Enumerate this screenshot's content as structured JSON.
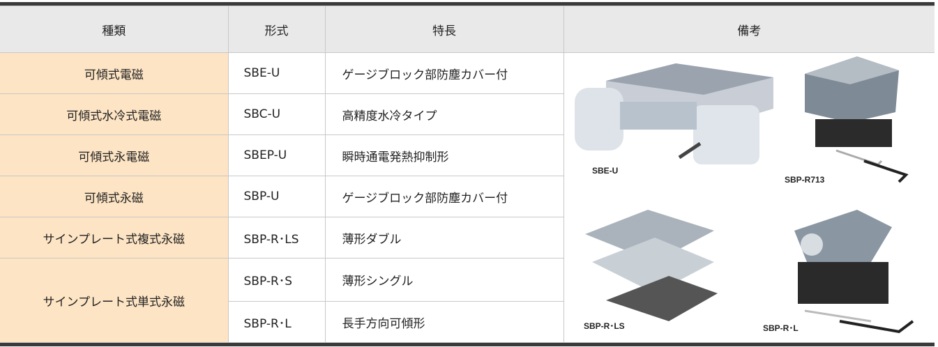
{
  "table": {
    "header": [
      "種類",
      "形式",
      "特長",
      "備考"
    ],
    "rows": [
      {
        "type": "可傾式電磁",
        "model": "SBE-U",
        "feature": "ゲージブロック部防塵カバー付"
      },
      {
        "type": "可傾式水冷式電磁",
        "model": "SBC-U",
        "feature": "高精度水冷タイプ"
      },
      {
        "type": "可傾式永電磁",
        "model": "SBEP-U",
        "feature": "瞬時通電発熱抑制形"
      },
      {
        "type": "可傾式永磁",
        "model": "SBP-U",
        "feature": "ゲージブロック部防塵カバー付"
      },
      {
        "type": "サインプレート式複式永磁",
        "model": "SBP-R･LS",
        "feature": "薄形ダブル"
      },
      {
        "type": "サインプレート式単式永磁",
        "model": "SBP-R･S",
        "feature": "薄形シングル"
      },
      {
        "type": null,
        "model": "SBP-R･L",
        "feature": "長手方向可傾形"
      }
    ],
    "image_labels": [
      "SBE-U",
      "SBP-R713",
      "SBP-R･LS",
      "SBP-R･L"
    ]
  }
}
